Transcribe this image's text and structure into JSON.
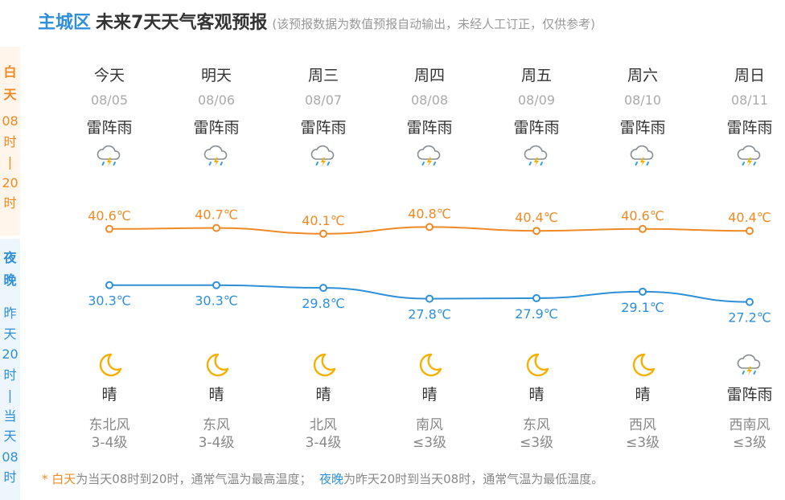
{
  "header": {
    "city": "主城区",
    "title": "未来7天天气客观预报",
    "note": "(该预报数据为数值预报自动输出，未经人工订正，仅供参考)"
  },
  "side": {
    "day_title": [
      "白",
      "天"
    ],
    "day_sub": [
      "08",
      "时",
      "|",
      "20",
      "时"
    ],
    "night_title": [
      "夜",
      "晚"
    ],
    "night_sub": [
      "昨",
      "天",
      "20",
      "时",
      "|",
      "当",
      "天",
      "08",
      "时"
    ]
  },
  "days": [
    {
      "label": "今天",
      "date": "08/05",
      "day_weather": "雷阵雨",
      "day_icon": "thunderstorm-icon",
      "high": "40.6℃",
      "low": "30.3℃",
      "night_icon": "moon-icon",
      "night_weather": "晴",
      "wind": "东北风",
      "wind_level": "3-4级"
    },
    {
      "label": "明天",
      "date": "08/06",
      "day_weather": "雷阵雨",
      "day_icon": "thunderstorm-icon",
      "high": "40.7℃",
      "low": "30.3℃",
      "night_icon": "moon-icon",
      "night_weather": "晴",
      "wind": "东风",
      "wind_level": "3-4级"
    },
    {
      "label": "周三",
      "date": "08/07",
      "day_weather": "雷阵雨",
      "day_icon": "thunderstorm-icon",
      "high": "40.1℃",
      "low": "29.8℃",
      "night_icon": "moon-icon",
      "night_weather": "晴",
      "wind": "北风",
      "wind_level": "3-4级"
    },
    {
      "label": "周四",
      "date": "08/08",
      "day_weather": "雷阵雨",
      "day_icon": "thunderstorm-icon",
      "high": "40.8℃",
      "low": "27.8℃",
      "night_icon": "moon-icon",
      "night_weather": "晴",
      "wind": "南风",
      "wind_level": "≤3级"
    },
    {
      "label": "周五",
      "date": "08/09",
      "day_weather": "雷阵雨",
      "day_icon": "thunderstorm-icon",
      "high": "40.4℃",
      "low": "27.9℃",
      "night_icon": "moon-icon",
      "night_weather": "晴",
      "wind": "东风",
      "wind_level": "≤3级"
    },
    {
      "label": "周六",
      "date": "08/10",
      "day_weather": "雷阵雨",
      "day_icon": "thunderstorm-icon",
      "high": "40.6℃",
      "low": "29.1℃",
      "night_icon": "moon-icon",
      "night_weather": "晴",
      "wind": "西风",
      "wind_level": "≤3级"
    },
    {
      "label": "周日",
      "date": "08/11",
      "day_weather": "雷阵雨",
      "day_icon": "thunderstorm-icon",
      "high": "40.4℃",
      "low": "27.2℃",
      "night_icon": "thunderstorm-icon",
      "night_weather": "雷阵雨",
      "wind": "西南风",
      "wind_level": "≤3级"
    }
  ],
  "chart_data": {
    "type": "line",
    "categories": [
      "今天",
      "明天",
      "周三",
      "周四",
      "周五",
      "周六",
      "周日"
    ],
    "series": [
      {
        "values": [
          40.6,
          40.7,
          40.1,
          40.8,
          40.4,
          40.6,
          40.4
        ],
        "color": "#f08a24"
      },
      {
        "values": [
          30.3,
          30.3,
          29.8,
          27.8,
          27.9,
          29.1,
          27.2
        ],
        "color": "#2f8fd8"
      }
    ],
    "unit": "℃"
  },
  "footnote": {
    "star": "* ",
    "day_word": "白天",
    "day_text": "为当天08时到20时，通常气温为最高温度；",
    "night_word": "夜晚",
    "night_text": "为昨天20时到当天08时，通常气温为最低温度。"
  },
  "colors": {
    "accent_day": "#f08a24",
    "accent_night": "#2f8fd8"
  }
}
